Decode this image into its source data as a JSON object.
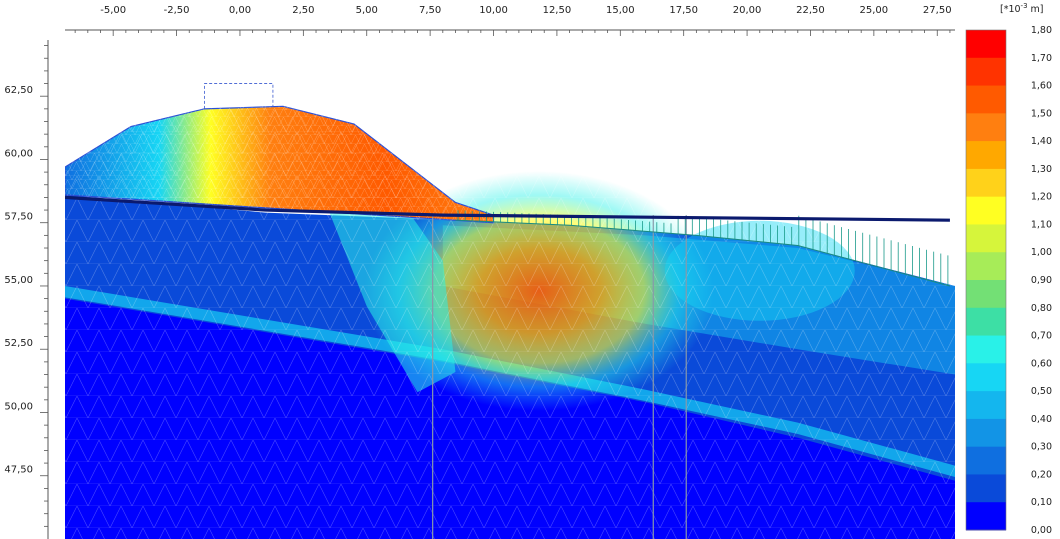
{
  "chart_data": {
    "type": "heatmap",
    "title": "",
    "x_ticks": [
      "-5,00",
      "-2,50",
      "0,00",
      "2,50",
      "5,00",
      "7,50",
      "10,00",
      "12,50",
      "15,00",
      "17,50",
      "20,00",
      "22,50",
      "25,00",
      "27,50"
    ],
    "x_tick_values": [
      -5,
      -2.5,
      0,
      2.5,
      5,
      7.5,
      10,
      12.5,
      15,
      17.5,
      20,
      22.5,
      25,
      27.5
    ],
    "y_ticks": [
      "62,50",
      "60,00",
      "57,50",
      "55,00",
      "52,50",
      "50,00",
      "47,50"
    ],
    "y_tick_values": [
      62.5,
      60,
      57.5,
      55,
      52.5,
      50,
      47.5
    ],
    "xlim": [
      -6.9,
      28.2
    ],
    "ylim": [
      45.0,
      64.8
    ],
    "colorbar": {
      "unit_prefix": "[*10",
      "unit_exponent": "-3",
      "unit_suffix": " m]",
      "min": 0.0,
      "max": 1.8,
      "labels": [
        "1,80",
        "1,70",
        "1,60",
        "1,50",
        "1,40",
        "1,30",
        "1,20",
        "1,10",
        "1,00",
        "0,90",
        "0,80",
        "0,70",
        "0,60",
        "0,50",
        "0,40",
        "0,30",
        "0,20",
        "0,10",
        "0,00"
      ],
      "colors": [
        "#ff0000",
        "#ff3300",
        "#ff5a00",
        "#ff7f10",
        "#ffa800",
        "#ffd21a",
        "#ffff22",
        "#d6f53b",
        "#a7ec58",
        "#73e075",
        "#3ddfa5",
        "#29f1e8",
        "#17d6f4",
        "#14b6ee",
        "#1294e6",
        "#0f6fe0",
        "#0a4ad9",
        "#0000ff"
      ]
    },
    "dam_profile": {
      "x": [
        -6.9,
        -4.3,
        -1.4,
        1.7,
        4.5,
        8.5,
        10.0
      ],
      "y": [
        59.7,
        61.3,
        62.0,
        62.1,
        61.4,
        58.3,
        57.8
      ]
    },
    "water_level": {
      "x": [
        -6.9,
        1.0,
        8.0,
        28.0
      ],
      "y": [
        58.5,
        58.0,
        57.8,
        57.6
      ]
    },
    "ground_surface": {
      "x": [
        8.5,
        13.0,
        18.0,
        22.0,
        28.0
      ],
      "y": [
        57.6,
        57.4,
        57.0,
        56.6,
        55.0
      ]
    },
    "structure_lines_x": [
      7.6,
      16.3,
      17.6
    ]
  }
}
